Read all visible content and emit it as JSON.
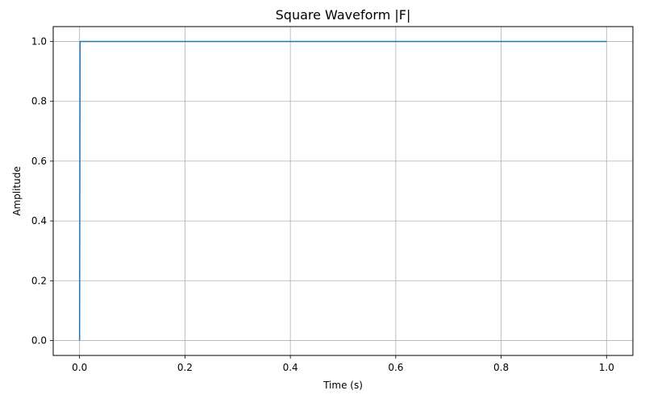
{
  "chart_data": {
    "type": "line",
    "title": "Square Waveform |F|",
    "xlabel": "Time (s)",
    "ylabel": "Amplitude",
    "xlim": [
      -0.05,
      1.05
    ],
    "ylim": [
      -0.05,
      1.05
    ],
    "xticks": [
      0.0,
      0.2,
      0.4,
      0.6,
      0.8,
      1.0
    ],
    "xtick_labels": [
      "0.0",
      "0.2",
      "0.4",
      "0.6",
      "0.8",
      "1.0"
    ],
    "yticks": [
      0.0,
      0.2,
      0.4,
      0.6,
      0.8,
      1.0
    ],
    "ytick_labels": [
      "0.0",
      "0.2",
      "0.4",
      "0.6",
      "0.8",
      "1.0"
    ],
    "grid": true,
    "legend": "none",
    "series": [
      {
        "color": "#1f77b4",
        "x": [
          0.0,
          0.001,
          1.0
        ],
        "y": [
          0.0,
          1.0,
          1.0
        ]
      }
    ]
  },
  "colors": {
    "line": "#1f77b4",
    "grid": "#b0b0b0",
    "axes": "#000000"
  }
}
